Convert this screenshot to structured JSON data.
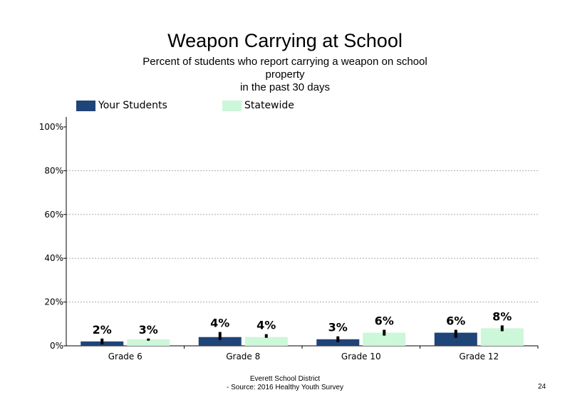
{
  "colors": {
    "your_students": "#1f4478",
    "statewide": "#ccf7d9",
    "error_bar": "#000000",
    "grid": "#aaaaaa"
  },
  "footer": {
    "district": "Everett School District",
    "source": "- Source: 2016 Healthy Youth Survey",
    "page_number": "24"
  },
  "chart_data": {
    "type": "bar",
    "title": "Weapon Carrying at School",
    "subtitle_lines": [
      "Percent of students  who report carrying a weapon  on school",
      "property",
      "in the past 30 days"
    ],
    "categories": [
      "Grade 6",
      "Grade 8",
      "Grade 10",
      "Grade 12"
    ],
    "series": [
      {
        "name": "Your Students",
        "values": [
          2,
          4,
          3,
          6
        ],
        "labels": [
          "2%",
          "4%",
          "3%",
          "6%"
        ],
        "ci": [
          [
            1,
            3
          ],
          [
            3,
            6
          ],
          [
            2,
            4
          ],
          [
            4,
            7
          ]
        ]
      },
      {
        "name": "Statewide",
        "values": [
          3,
          4,
          6,
          8
        ],
        "labels": [
          "3%",
          "4%",
          "6%",
          "8%"
        ],
        "ci": [
          [
            3,
            3
          ],
          [
            4,
            5
          ],
          [
            5,
            7
          ],
          [
            7,
            9
          ]
        ]
      }
    ],
    "ylim": [
      0,
      100
    ],
    "yticks": [
      0,
      20,
      40,
      60,
      80,
      100
    ],
    "ytick_labels": [
      "0%",
      "20%",
      "40%",
      "60%",
      "80%",
      "100%"
    ],
    "gridlines": [
      20,
      40,
      60,
      80
    ],
    "legend_position": "top-left",
    "xlabel": "",
    "ylabel": ""
  }
}
